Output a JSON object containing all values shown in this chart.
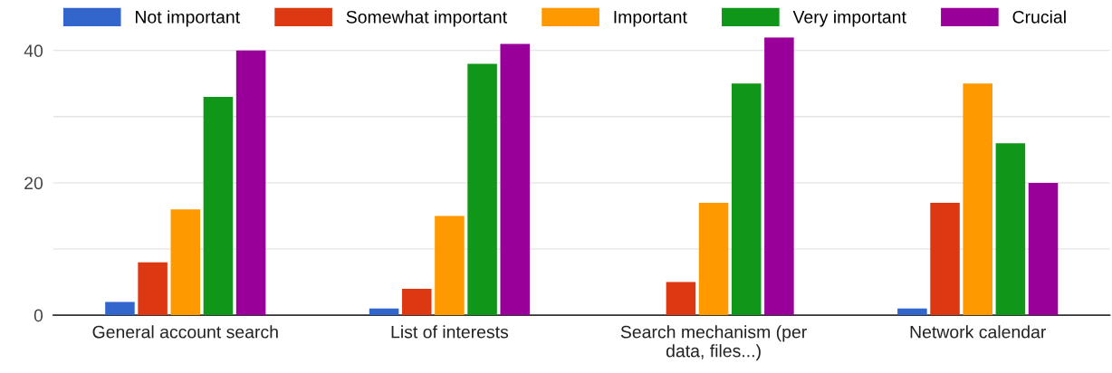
{
  "chart_data": {
    "type": "bar",
    "categories": [
      "General account search",
      "List of interests",
      "Search mechanism (per data, files...)",
      "Network calendar"
    ],
    "series": [
      {
        "name": "Not important",
        "color": "#3366cc",
        "values": [
          2,
          1,
          0,
          1
        ]
      },
      {
        "name": "Somewhat important",
        "color": "#dc3912",
        "values": [
          8,
          4,
          5,
          17
        ]
      },
      {
        "name": "Important",
        "color": "#ff9900",
        "values": [
          16,
          15,
          17,
          35
        ]
      },
      {
        "name": "Very important",
        "color": "#109618",
        "values": [
          33,
          38,
          35,
          26
        ]
      },
      {
        "name": "Crucial",
        "color": "#990099",
        "values": [
          40,
          41,
          42,
          20
        ]
      }
    ],
    "ylim": [
      0,
      42
    ],
    "yticks": [
      0,
      {
        "value": 10,
        "label": null
      },
      20,
      {
        "value": 30,
        "label": null
      },
      40
    ],
    "grid": "y",
    "legend": "top"
  }
}
